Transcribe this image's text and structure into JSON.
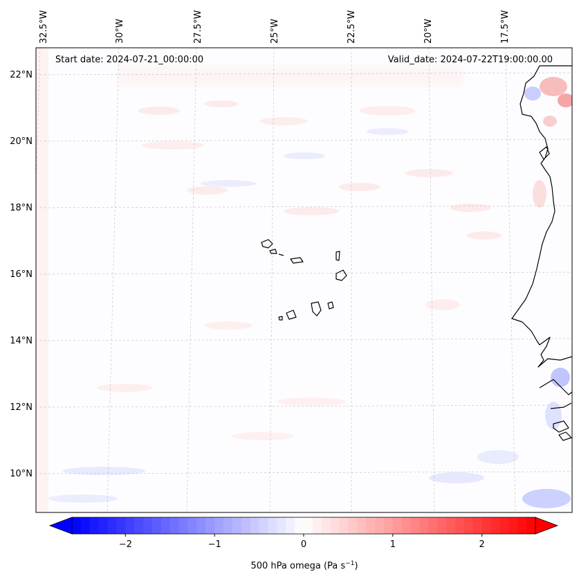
{
  "map": {
    "start_label": "Start date: 2024-07-21_00:00:00",
    "valid_label": "Valid_date: 2024-07-22T19:00:00.00",
    "lon_labels": [
      "32.5°W",
      "30°W",
      "27.5°W",
      "25°W",
      "22.5°W",
      "20°W",
      "17.5°W"
    ],
    "lat_labels": [
      "22°N",
      "20°N",
      "18°N",
      "16°N",
      "14°N",
      "12°N",
      "10°N"
    ]
  },
  "colorbar": {
    "ticks": [
      "−2",
      "−1",
      "0",
      "1",
      "2"
    ],
    "tick_values": [
      -2,
      -1,
      0,
      1,
      2
    ],
    "range": [
      -2.6,
      2.6
    ],
    "label_main": "500 hPa omega (Pa s",
    "label_sup": "−1",
    "label_close": ")",
    "low_color": "#0000ff",
    "mid_color": "#ffffff",
    "high_color": "#ff0000"
  }
}
